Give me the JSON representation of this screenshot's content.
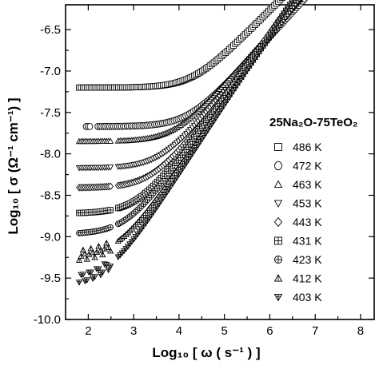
{
  "chart_data": {
    "type": "scatter",
    "title": "",
    "xlabel": "Log₁₀ [ ω ( s⁻¹ ) ]",
    "ylabel": "Log₁₀ [ σ (Ω⁻¹ cm⁻¹) ]",
    "xlim": [
      1.5,
      8.3
    ],
    "ylim": [
      -10.0,
      -6.2
    ],
    "xticks": [
      "2",
      "3",
      "4",
      "5",
      "6",
      "7",
      "8"
    ],
    "yticks": [
      "-6.5",
      "-7.0",
      "-7.5",
      "-8.0",
      "-8.5",
      "-9.0",
      "-9.5",
      "-10.0"
    ],
    "grid": false,
    "legend": {
      "title": "25Na₂O-75TeO₂",
      "position": "right"
    },
    "series": [
      {
        "name": "486 K",
        "marker": "square",
        "dc": -7.2,
        "x_start": 1.8,
        "x_end": 6.85,
        "slope": 0.55,
        "knee": 4.3,
        "gaps": []
      },
      {
        "name": "472 K",
        "marker": "circle",
        "dc": -7.67,
        "x_start": 1.95,
        "x_end": 6.85,
        "slope": 0.6,
        "knee": 4.2,
        "gaps": [
          [
            2.05,
            2.2
          ]
        ]
      },
      {
        "name": "463 K",
        "marker": "triangle-up",
        "dc": -7.85,
        "x_start": 1.8,
        "x_end": 6.85,
        "slope": 0.62,
        "knee": 3.9,
        "gaps": [
          [
            2.5,
            2.65
          ]
        ]
      },
      {
        "name": "453 K",
        "marker": "triangle-down",
        "dc": -8.17,
        "x_start": 1.8,
        "x_end": 6.85,
        "slope": 0.66,
        "knee": 3.6,
        "gaps": [
          [
            2.5,
            2.65
          ]
        ]
      },
      {
        "name": "443 K",
        "marker": "diamond",
        "dc": -8.41,
        "x_start": 1.8,
        "x_end": 6.85,
        "slope": 0.7,
        "knee": 3.4,
        "gaps": [
          [
            2.5,
            2.65
          ]
        ]
      },
      {
        "name": "431 K",
        "marker": "square-cross",
        "dc": -8.72,
        "x_start": 1.8,
        "x_end": 6.85,
        "slope": 0.74,
        "knee": 3.1,
        "gaps": [
          [
            2.5,
            2.65
          ]
        ]
      },
      {
        "name": "423 K",
        "marker": "circle-cross",
        "dc": -8.97,
        "x_start": 1.8,
        "x_end": 6.85,
        "slope": 0.77,
        "knee": 2.85,
        "gaps": [
          [
            2.5,
            2.65
          ]
        ]
      },
      {
        "name": "412 K",
        "marker": "triangle-cross",
        "dc": -9.25,
        "x_start": 1.8,
        "x_end": 6.85,
        "slope": 0.8,
        "knee": 2.65,
        "gaps": [
          [
            2.5,
            2.65
          ]
        ]
      },
      {
        "name": "403 K",
        "marker": "triangle-down-cross",
        "dc": -9.55,
        "x_start": 1.8,
        "x_end": 6.85,
        "slope": 0.84,
        "knee": 2.45,
        "gaps": [
          [
            2.5,
            2.65
          ]
        ]
      }
    ]
  }
}
